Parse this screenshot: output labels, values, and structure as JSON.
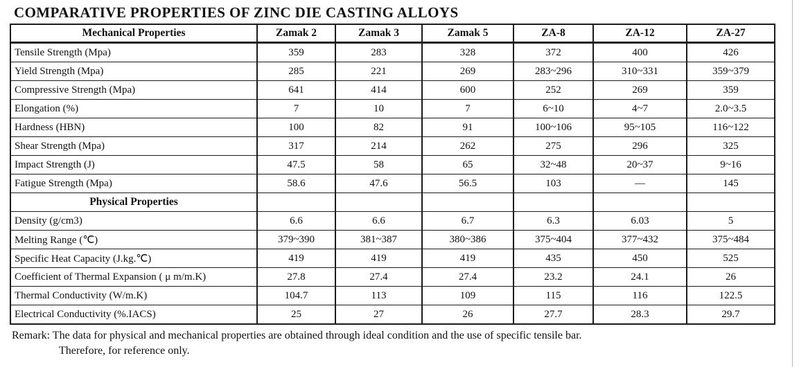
{
  "title": "COMPARATIVE PROPERTIES OF ZINC DIE CASTING ALLOYS",
  "table": {
    "columns": [
      "Mechanical Properties",
      "Zamak 2",
      "Zamak 3",
      "Zamak 5",
      "ZA-8",
      "ZA-12",
      "ZA-27"
    ],
    "mechanical_rows": [
      {
        "property": "Tensile Strength (Mpa)",
        "values": [
          "359",
          "283",
          "328",
          "372",
          "400",
          "426"
        ]
      },
      {
        "property": "Yield Strength (Mpa)",
        "values": [
          "285",
          "221",
          "269",
          "283~296",
          "310~331",
          "359~379"
        ]
      },
      {
        "property": "Compressive Strength (Mpa)",
        "values": [
          "641",
          "414",
          "600",
          "252",
          "269",
          "359"
        ]
      },
      {
        "property": "Elongation (%)",
        "values": [
          "7",
          "10",
          "7",
          "6~10",
          "4~7",
          "2.0~3.5"
        ]
      },
      {
        "property": "Hardness (HBN)",
        "values": [
          "100",
          "82",
          "91",
          "100~106",
          "95~105",
          "116~122"
        ]
      },
      {
        "property": "Shear Strength (Mpa)",
        "values": [
          "317",
          "214",
          "262",
          "275",
          "296",
          "325"
        ]
      },
      {
        "property": "Impact Strength (J)",
        "values": [
          "47.5",
          "58",
          "65",
          "32~48",
          "20~37",
          "9~16"
        ]
      },
      {
        "property": "Fatigue Strength (Mpa)",
        "values": [
          "58.6",
          "47.6",
          "56.5",
          "103",
          "—",
          "145"
        ]
      }
    ],
    "section_header": "Physical Properties",
    "physical_rows": [
      {
        "property": "Density (g/cm3)",
        "values": [
          "6.6",
          "6.6",
          "6.7",
          "6.3",
          "6.03",
          "5"
        ]
      },
      {
        "property": "Melting Range (℃)",
        "values": [
          "379~390",
          "381~387",
          "380~386",
          "375~404",
          "377~432",
          "375~484"
        ]
      },
      {
        "property": "Specific Heat Capacity (J.kg.℃)",
        "values": [
          "419",
          "419",
          "419",
          "435",
          "450",
          "525"
        ]
      },
      {
        "property": "Coefficient of Thermal Expansion ( μ m/m.K)",
        "values": [
          "27.8",
          "27.4",
          "27.4",
          "23.2",
          "24.1",
          "26"
        ]
      },
      {
        "property": "Thermal Conductivity (W/m.K)",
        "values": [
          "104.7",
          "113",
          "109",
          "115",
          "116",
          "122.5"
        ]
      },
      {
        "property": "Electrical Conductivity (%.IACS)",
        "values": [
          "25",
          "27",
          "26",
          "27.7",
          "28.3",
          "29.7"
        ]
      }
    ]
  },
  "remark": {
    "line1": "Remark: The data for physical and mechanical properties are obtained through ideal condition and the use of specific tensile bar.",
    "line2": "Therefore, for reference only."
  }
}
